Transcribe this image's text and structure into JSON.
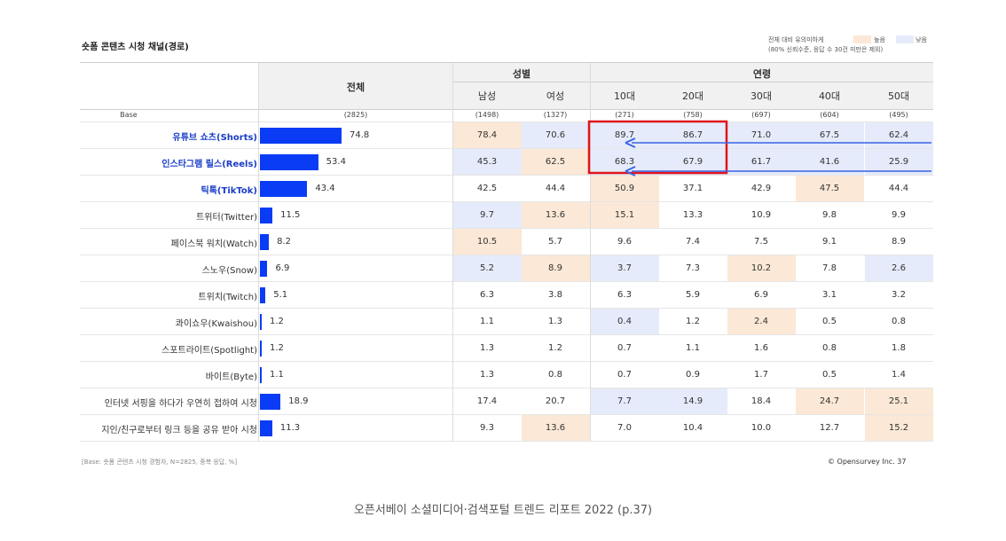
{
  "title": "숏폼 콘텐츠 시청 채널(경로)",
  "legend": {
    "note_line1": "전체 대비 유의미하게",
    "note_line2": "(80% 신뢰수준, 응답 수 30건 미만은 제외)",
    "high_label": "높음",
    "low_label": "낮음",
    "high_color": "#fbe8d6",
    "low_color": "#e5ebfa"
  },
  "header": {
    "total": "전체",
    "gender": "성별",
    "age": "연령",
    "columns": [
      "남성",
      "여성",
      "10대",
      "20대",
      "30대",
      "40대",
      "50대"
    ]
  },
  "base": {
    "label": "Base",
    "total": "(2825)",
    "values": [
      "(1498)",
      "(1327)",
      "(271)",
      "(758)",
      "(697)",
      "(604)",
      "(495)"
    ]
  },
  "chart_data": {
    "type": "bar",
    "title": "숏폼 콘텐츠 시청 채널(경로)",
    "categories": [
      "유튜브 쇼츠(Shorts)",
      "인스타그램 릴스(Reels)",
      "틱톡(TikTok)",
      "트위터(Twitter)",
      "페이스북 워치(Watch)",
      "스노우(Snow)",
      "트위치(Twitch)",
      "콰이쇼우(Kwaishou)",
      "스포트라이트(Spotlight)",
      "바이트(Byte)",
      "인터넷 서핑을 하다가 우연히 접하여 시청",
      "지인/친구로부터 링크 등을 공유 받아 시청"
    ],
    "values": [
      74.8,
      53.4,
      43.4,
      11.5,
      8.2,
      6.9,
      5.1,
      1.2,
      1.2,
      1.1,
      18.9,
      11.3
    ],
    "bold_rows": [
      0,
      1,
      2
    ],
    "series": [
      {
        "name": "남성",
        "values": [
          78.4,
          45.3,
          42.5,
          9.7,
          10.5,
          5.2,
          6.3,
          1.1,
          1.3,
          1.3,
          17.4,
          9.3
        ]
      },
      {
        "name": "여성",
        "values": [
          70.6,
          62.5,
          44.4,
          13.6,
          5.7,
          8.9,
          3.8,
          1.3,
          1.2,
          0.8,
          20.7,
          13.6
        ]
      },
      {
        "name": "10대",
        "values": [
          89.7,
          68.3,
          50.9,
          15.1,
          9.6,
          3.7,
          6.3,
          0.4,
          0.7,
          0.7,
          7.7,
          7.0
        ]
      },
      {
        "name": "20대",
        "values": [
          86.7,
          67.9,
          37.1,
          13.3,
          7.4,
          7.3,
          5.9,
          1.2,
          1.1,
          0.9,
          14.9,
          10.4
        ]
      },
      {
        "name": "30대",
        "values": [
          71.0,
          61.7,
          42.9,
          10.9,
          7.5,
          10.2,
          6.9,
          2.4,
          1.6,
          1.7,
          18.4,
          10.0
        ]
      },
      {
        "name": "40대",
        "values": [
          67.5,
          41.6,
          47.5,
          9.8,
          9.1,
          7.8,
          3.1,
          0.5,
          0.8,
          0.5,
          24.7,
          12.7
        ]
      },
      {
        "name": "50대",
        "values": [
          62.4,
          25.9,
          44.4,
          9.9,
          8.9,
          2.6,
          3.2,
          0.8,
          1.8,
          1.4,
          25.1,
          15.2
        ]
      }
    ],
    "significance": [
      [
        "h",
        "l",
        "l",
        "l",
        "l",
        "l",
        "l"
      ],
      [
        "l",
        "h",
        "l",
        "l",
        "l",
        "l",
        "l"
      ],
      [
        "",
        "",
        "h",
        "",
        "",
        "h",
        ""
      ],
      [
        "l",
        "h",
        "h",
        "",
        "",
        "",
        ""
      ],
      [
        "h",
        "",
        "",
        "",
        "",
        "",
        ""
      ],
      [
        "l",
        "h",
        "l",
        "",
        "h",
        "",
        "l"
      ],
      [
        "",
        "",
        "",
        "",
        "",
        "",
        ""
      ],
      [
        "",
        "",
        "l",
        "",
        "h",
        "",
        ""
      ],
      [
        "",
        "",
        "",
        "",
        "",
        "",
        ""
      ],
      [
        "",
        "",
        "",
        "",
        "",
        "",
        ""
      ],
      [
        "",
        "",
        "l",
        "l",
        "",
        "h",
        "h"
      ],
      [
        "",
        "h",
        "",
        "",
        "",
        "",
        "h"
      ]
    ],
    "bar_color": "#0a3cf5",
    "highlight_box_color": "#e0151b",
    "arrow_color": "#3a63e6"
  },
  "footnote": "[Base: 숏폼 콘텐츠 시청 경험자, N=2825, 중복 응답, %]",
  "copyright": "© Opensurvey Inc.   37",
  "caption": "오픈서베이 소셜미디어·검색포털 트렌드 리포트 2022 (p.37)"
}
